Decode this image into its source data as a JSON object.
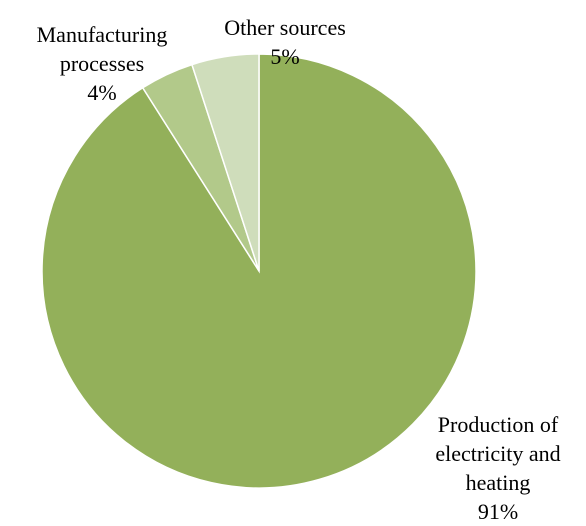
{
  "chart_data": {
    "type": "pie",
    "title": "",
    "start_angle_deg": 0,
    "direction": "clockwise",
    "slices": [
      {
        "name": "Production of electricity and heating",
        "value": 91,
        "label_lines": [
          "Production of",
          "electricity and",
          "heating"
        ],
        "value_label": "91%",
        "color": "#93B05A"
      },
      {
        "name": "Manufacturing processes",
        "value": 4,
        "label_lines": [
          "Manufacturing",
          "processes"
        ],
        "value_label": "4%",
        "color": "#B2C98A"
      },
      {
        "name": "Other sources",
        "value": 5,
        "label_lines": [
          "Other sources"
        ],
        "value_label": "5%",
        "color": "#CFDDBB"
      }
    ]
  }
}
